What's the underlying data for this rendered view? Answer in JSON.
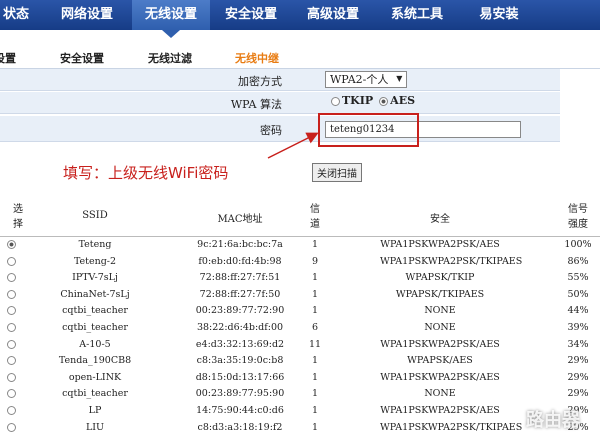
{
  "nav": {
    "items": [
      "状态",
      "网络设置",
      "无线设置",
      "安全设置",
      "高级设置",
      "系统工具",
      "易安装"
    ],
    "active": 2
  },
  "subnav": {
    "items": [
      "设置",
      "安全设置",
      "无线过滤",
      "无线中继"
    ],
    "active": 3
  },
  "form": {
    "encryption": {
      "label": "加密方式",
      "value": "WPA2-个人"
    },
    "algorithm": {
      "label": "WPA 算法",
      "options": [
        "TKIP",
        "AES"
      ],
      "selected": 1
    },
    "password": {
      "label": "密码",
      "value": "teteng01234"
    }
  },
  "annotation": "填写：上级无线WiFi密码",
  "button": "关闭扫描",
  "table": {
    "headers": [
      "选择",
      "SSID",
      "MAC地址",
      "信道",
      "安全",
      "信号强度"
    ],
    "selected": 0,
    "rows": [
      [
        "Teteng",
        "9c:21:6a:bc:bc:7a",
        "1",
        "WPA1PSKWPA2PSK/AES",
        "100%"
      ],
      [
        "Teteng-2",
        "f0:eb:d0:fd:4b:98",
        "9",
        "WPA1PSKWPA2PSK/TKIPAES",
        "86%"
      ],
      [
        "IPTV-7sLj",
        "72:88:ff:27:7f:51",
        "1",
        "WPAPSK/TKIP",
        "55%"
      ],
      [
        "ChinaNet-7sLj",
        "72:88:ff:27:7f:50",
        "1",
        "WPAPSK/TKIPAES",
        "50%"
      ],
      [
        "cqtbi_teacher",
        "00:23:89:77:72:90",
        "1",
        "NONE",
        "44%"
      ],
      [
        "cqtbi_teacher",
        "38:22:d6:4b:df:00",
        "6",
        "NONE",
        "39%"
      ],
      [
        "A-10-5",
        "e4:d3:32:13:69:d2",
        "11",
        "WPA1PSKWPA2PSK/AES",
        "34%"
      ],
      [
        "Tenda_190CB8",
        "c8:3a:35:19:0c:b8",
        "1",
        "WPAPSK/AES",
        "29%"
      ],
      [
        "open-LINK",
        "d8:15:0d:13:17:66",
        "1",
        "WPA1PSKWPA2PSK/AES",
        "29%"
      ],
      [
        "cqtbi_teacher",
        "00:23:89:77:95:90",
        "1",
        "NONE",
        "29%"
      ],
      [
        "LP",
        "14:75:90:44:c0:d6",
        "1",
        "WPA1PSKWPA2PSK/AES",
        "29%"
      ],
      [
        "LIU",
        "c8:d3:a3:18:19:f2",
        "1",
        "WPA1PSKWPA2PSK/TKIPAES",
        "29%"
      ]
    ]
  },
  "watermark": "路由器"
}
